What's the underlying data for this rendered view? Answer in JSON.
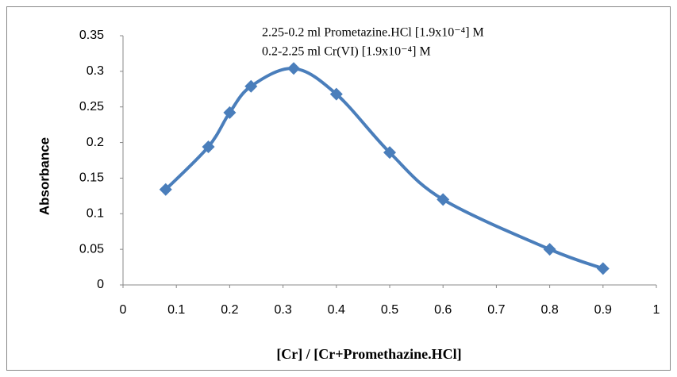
{
  "chart_data": {
    "type": "line",
    "annotations": [
      "2.25-0.2 ml Prometazine.HCl [1.9x10⁻⁴] M",
      "0.2-2.25 ml Cr(VI) [1.9x10⁻⁴] M"
    ],
    "x_label": "[Cr] / [Cr+Promethazine.HCl]",
    "y_label": "Absorbance",
    "x": [
      0.08,
      0.16,
      0.2,
      0.24,
      0.32,
      0.4,
      0.5,
      0.6,
      0.8,
      0.9
    ],
    "series": [
      {
        "color": "#4a7ebb",
        "values": [
          0.134,
          0.194,
          0.242,
          0.279,
          0.304,
          0.268,
          0.186,
          0.12,
          0.05,
          0.023
        ]
      }
    ],
    "xlim": [
      0,
      1
    ],
    "xticks": [
      0,
      0.1,
      0.2,
      0.3,
      0.4,
      0.5,
      0.6,
      0.7,
      0.8,
      0.9,
      1
    ],
    "ylim": [
      0,
      0.35
    ],
    "yticks": [
      0,
      0.05,
      0.1,
      0.15,
      0.2,
      0.25,
      0.3,
      0.35
    ],
    "smooth": true,
    "marker": "diamond"
  }
}
